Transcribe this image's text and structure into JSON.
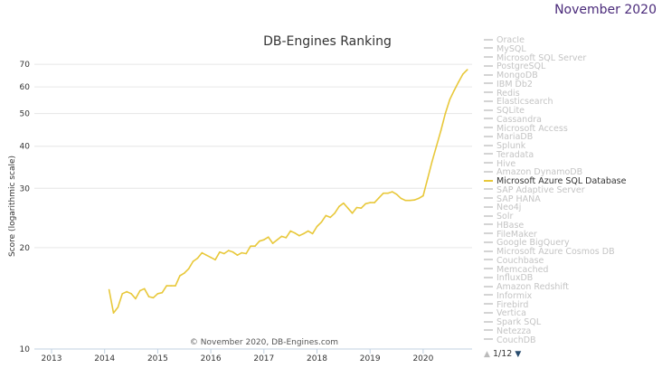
{
  "header": {
    "date": "November 2020"
  },
  "chart_data": {
    "type": "line",
    "title": "DB-Engines Ranking",
    "ylabel": "Score (logarithmic scale)",
    "xlabel": "",
    "yscale": "log",
    "ylim": [
      10,
      75
    ],
    "yticks": [
      "10",
      "20",
      "30",
      "40",
      "50",
      "60",
      "70"
    ],
    "xticks": [
      "2013",
      "2014",
      "2015",
      "2016",
      "2017",
      "2018",
      "2019",
      "2020"
    ],
    "credit": "© November 2020, DB-Engines.com",
    "grid": true,
    "legend_position": "right",
    "color": "#e8c83a",
    "series": [
      {
        "name": "Microsoft Azure SQL Database",
        "dates": [
          "2014-02",
          "2014-03",
          "2014-04",
          "2014-05",
          "2014-06",
          "2014-07",
          "2014-08",
          "2014-09",
          "2014-10",
          "2014-11",
          "2014-12",
          "2015-01",
          "2015-02",
          "2015-03",
          "2015-04",
          "2015-05",
          "2015-06",
          "2015-07",
          "2015-08",
          "2015-09",
          "2015-10",
          "2015-11",
          "2015-12",
          "2016-01",
          "2016-02",
          "2016-03",
          "2016-04",
          "2016-05",
          "2016-06",
          "2016-07",
          "2016-08",
          "2016-09",
          "2016-10",
          "2016-11",
          "2016-12",
          "2017-01",
          "2017-02",
          "2017-03",
          "2017-04",
          "2017-05",
          "2017-06",
          "2017-07",
          "2017-08",
          "2017-09",
          "2017-10",
          "2017-11",
          "2017-12",
          "2018-01",
          "2018-02",
          "2018-03",
          "2018-04",
          "2018-05",
          "2018-06",
          "2018-07",
          "2018-08",
          "2018-09",
          "2018-10",
          "2018-11",
          "2018-12",
          "2019-01",
          "2019-02",
          "2019-03",
          "2019-04",
          "2019-05",
          "2019-06",
          "2019-07",
          "2019-08",
          "2019-09",
          "2019-10",
          "2019-11",
          "2019-12",
          "2020-01",
          "2020-02",
          "2020-03",
          "2020-04",
          "2020-05",
          "2020-06",
          "2020-07",
          "2020-08",
          "2020-09",
          "2020-10",
          "2020-11"
        ],
        "values": [
          15.0,
          12.8,
          13.3,
          14.6,
          14.8,
          14.6,
          14.1,
          14.9,
          15.1,
          14.3,
          14.2,
          14.6,
          14.7,
          15.4,
          15.4,
          15.4,
          16.5,
          16.8,
          17.3,
          18.2,
          18.6,
          19.3,
          19.0,
          18.7,
          18.4,
          19.4,
          19.2,
          19.6,
          19.4,
          19.0,
          19.3,
          19.2,
          20.2,
          20.2,
          20.9,
          21.1,
          21.5,
          20.6,
          21.1,
          21.6,
          21.4,
          22.4,
          22.1,
          21.7,
          22.0,
          22.4,
          22.0,
          23.1,
          23.8,
          24.9,
          24.6,
          25.3,
          26.5,
          27.1,
          26.2,
          25.3,
          26.3,
          26.2,
          27.0,
          27.2,
          27.2,
          28.1,
          29.0,
          29.0,
          29.3,
          28.8,
          28.0,
          27.6,
          27.6,
          27.7,
          28.0,
          28.5,
          32.0,
          36.0,
          40.0,
          44.5,
          50.0,
          55.0,
          58.5,
          62.0,
          65.5,
          67.5
        ]
      }
    ]
  },
  "legend": {
    "items": [
      "Oracle",
      "MySQL",
      "Microsoft SQL Server",
      "PostgreSQL",
      "MongoDB",
      "IBM Db2",
      "Redis",
      "Elasticsearch",
      "SQLite",
      "Cassandra",
      "Microsoft Access",
      "MariaDB",
      "Splunk",
      "Teradata",
      "Hive",
      "Amazon DynamoDB",
      "Microsoft Azure SQL Database",
      "SAP Adaptive Server",
      "SAP HANA",
      "Neo4j",
      "Solr",
      "HBase",
      "FileMaker",
      "Google BigQuery",
      "Microsoft Azure Cosmos DB",
      "Couchbase",
      "Memcached",
      "InfluxDB",
      "Amazon Redshift",
      "Informix",
      "Firebird",
      "Vertica",
      "Spark SQL",
      "Netezza",
      "CouchDB"
    ],
    "active": "Microsoft Azure SQL Database",
    "pager": "1/12",
    "up_icon": "▲",
    "down_icon": "▼"
  }
}
